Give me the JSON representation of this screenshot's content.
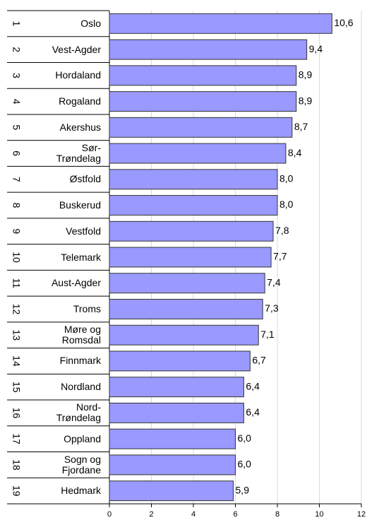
{
  "chart_data": {
    "type": "bar",
    "orientation": "horizontal",
    "ranks": [
      1,
      2,
      3,
      4,
      5,
      6,
      7,
      8,
      9,
      10,
      11,
      12,
      13,
      14,
      15,
      16,
      17,
      18,
      19
    ],
    "categories": [
      "Oslo",
      "Vest-Agder",
      "Hordaland",
      "Rogaland",
      "Akershus",
      "Sør-Trøndelag",
      "Østfold",
      "Buskerud",
      "Vestfold",
      "Telemark",
      "Aust-Agder",
      "Troms",
      "Møre og Romsdal",
      "Finnmark",
      "Nordland",
      "Nord-Trøndelag",
      "Oppland",
      "Sogn og Fjordane",
      "Hedmark"
    ],
    "values": [
      10.6,
      9.4,
      8.9,
      8.9,
      8.7,
      8.4,
      8.0,
      8.0,
      7.8,
      7.7,
      7.4,
      7.3,
      7.1,
      6.7,
      6.4,
      6.4,
      6.0,
      6.0,
      5.9
    ],
    "value_labels": [
      "10,6",
      "9,4",
      "8,9",
      "8,9",
      "8,7",
      "8,4",
      "8,0",
      "8,0",
      "7,8",
      "7,7",
      "7,4",
      "7,3",
      "7,1",
      "6,7",
      "6,4",
      "6,4",
      "6,0",
      "6,0",
      "5,9"
    ],
    "color": "#9999ff",
    "xlim": [
      0,
      12
    ],
    "xticks": [
      0,
      2,
      4,
      6,
      8,
      10,
      12
    ],
    "grid": true
  }
}
